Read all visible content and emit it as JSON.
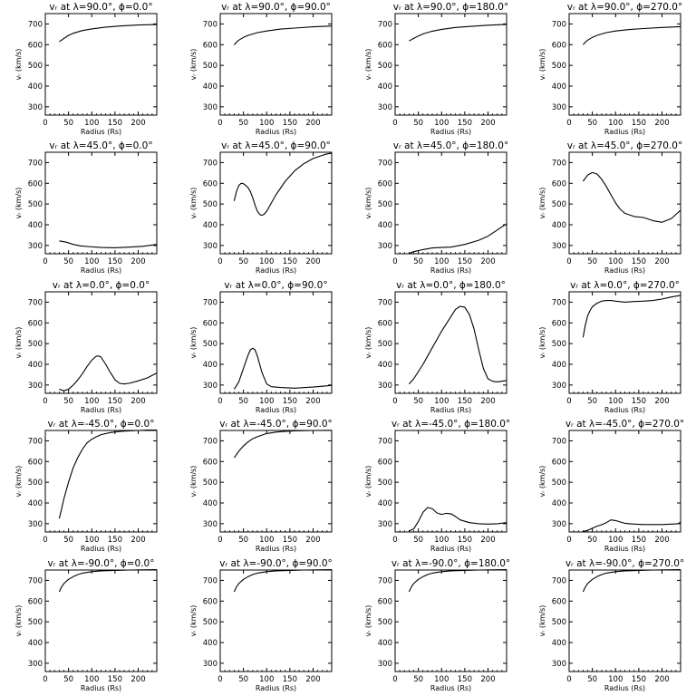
{
  "figure": {
    "ylabel": "vᵣ (km/s)",
    "xlabel": "Radius (Rs)",
    "xticks": [
      0,
      50,
      100,
      150,
      200
    ],
    "yticks": [
      300,
      400,
      500,
      600,
      700
    ],
    "xlim": [
      0,
      240
    ],
    "ylim": [
      260,
      750
    ]
  },
  "chart_data": [
    {
      "type": "line",
      "title": "vᵣ at λ=90.0°, ϕ=0.0°",
      "xlabel": "Radius (Rs)",
      "ylabel": "vᵣ (km/s)",
      "xlim": [
        0,
        240
      ],
      "ylim": [
        260,
        750
      ],
      "x": [
        30,
        40,
        50,
        60,
        80,
        100,
        130,
        160,
        200,
        240
      ],
      "y": [
        615,
        630,
        645,
        655,
        668,
        676,
        685,
        690,
        695,
        697
      ]
    },
    {
      "type": "line",
      "title": "vᵣ at λ=90.0°, ϕ=90.0°",
      "xlabel": "Radius (Rs)",
      "ylabel": "vᵣ (km/s)",
      "xlim": [
        0,
        240
      ],
      "ylim": [
        260,
        750
      ],
      "x": [
        30,
        35,
        40,
        50,
        60,
        80,
        100,
        130,
        160,
        200,
        240
      ],
      "y": [
        598,
        612,
        622,
        635,
        645,
        658,
        666,
        675,
        680,
        686,
        690
      ]
    },
    {
      "type": "line",
      "title": "vᵣ at λ=90.0°, ϕ=180.0°",
      "xlabel": "Radius (Rs)",
      "ylabel": "vᵣ (km/s)",
      "xlim": [
        0,
        240
      ],
      "ylim": [
        260,
        750
      ],
      "x": [
        30,
        40,
        50,
        60,
        80,
        100,
        130,
        160,
        200,
        240
      ],
      "y": [
        618,
        630,
        642,
        652,
        665,
        674,
        683,
        688,
        694,
        698
      ]
    },
    {
      "type": "line",
      "title": "vᵣ at λ=90.0°, ϕ=270.0°",
      "xlabel": "Radius (Rs)",
      "ylabel": "vᵣ (km/s)",
      "xlim": [
        0,
        240
      ],
      "ylim": [
        260,
        750
      ],
      "x": [
        30,
        35,
        40,
        50,
        60,
        80,
        100,
        130,
        160,
        200,
        240
      ],
      "y": [
        600,
        612,
        622,
        635,
        645,
        658,
        666,
        673,
        678,
        683,
        687
      ]
    },
    {
      "type": "line",
      "title": "vᵣ at λ=45.0°, ϕ=0.0°",
      "xlabel": "Radius (Rs)",
      "ylabel": "vᵣ (km/s)",
      "xlim": [
        0,
        240
      ],
      "ylim": [
        260,
        750
      ],
      "x": [
        30,
        45,
        60,
        75,
        90,
        120,
        150,
        180,
        210,
        240
      ],
      "y": [
        322,
        316,
        305,
        298,
        295,
        290,
        289,
        292,
        296,
        305
      ]
    },
    {
      "type": "line",
      "title": "vᵣ at λ=45.0°, ϕ=90.0°",
      "xlabel": "Radius (Rs)",
      "ylabel": "vᵣ (km/s)",
      "xlim": [
        0,
        240
      ],
      "ylim": [
        260,
        750
      ],
      "x": [
        30,
        35,
        40,
        45,
        50,
        55,
        60,
        65,
        70,
        75,
        80,
        85,
        90,
        95,
        100,
        110,
        120,
        140,
        160,
        180,
        200,
        220,
        230,
        240
      ],
      "y": [
        515,
        560,
        590,
        600,
        598,
        590,
        578,
        560,
        530,
        495,
        465,
        450,
        445,
        452,
        465,
        505,
        545,
        610,
        660,
        695,
        720,
        735,
        742,
        745
      ]
    },
    {
      "type": "line",
      "title": "vᵣ at λ=45.0°, ϕ=180.0°",
      "xlabel": "Radius (Rs)",
      "ylabel": "vᵣ (km/s)",
      "xlim": [
        0,
        240
      ],
      "ylim": [
        260,
        750
      ],
      "x": [
        30,
        40,
        60,
        80,
        100,
        120,
        150,
        180,
        200,
        220,
        240
      ],
      "y": [
        262,
        270,
        280,
        288,
        290,
        292,
        305,
        325,
        345,
        375,
        405
      ]
    },
    {
      "type": "line",
      "title": "vᵣ at λ=45.0°, ϕ=270.0°",
      "xlabel": "Radius (Rs)",
      "ylabel": "vᵣ (km/s)",
      "xlim": [
        0,
        240
      ],
      "ylim": [
        260,
        750
      ],
      "x": [
        30,
        40,
        50,
        60,
        70,
        80,
        90,
        100,
        110,
        120,
        140,
        160,
        180,
        200,
        220,
        240
      ],
      "y": [
        610,
        640,
        652,
        645,
        620,
        585,
        545,
        505,
        475,
        455,
        440,
        435,
        420,
        412,
        430,
        470
      ]
    },
    {
      "type": "line",
      "title": "vᵣ at λ=0.0°, ϕ=0.0°",
      "xlabel": "Radius (Rs)",
      "ylabel": "vᵣ (km/s)",
      "xlim": [
        0,
        240
      ],
      "ylim": [
        260,
        750
      ],
      "x": [
        30,
        40,
        50,
        60,
        70,
        80,
        90,
        100,
        110,
        115,
        120,
        130,
        140,
        150,
        160,
        170,
        180,
        200,
        220,
        240
      ],
      "y": [
        280,
        272,
        280,
        300,
        325,
        355,
        390,
        420,
        440,
        440,
        435,
        400,
        360,
        325,
        308,
        305,
        308,
        320,
        335,
        358
      ]
    },
    {
      "type": "line",
      "title": "vᵣ at λ=0.0°, ϕ=90.0°",
      "xlabel": "Radius (Rs)",
      "ylabel": "vᵣ (km/s)",
      "xlim": [
        0,
        240
      ],
      "ylim": [
        260,
        750
      ],
      "x": [
        30,
        40,
        50,
        60,
        65,
        70,
        75,
        80,
        90,
        100,
        110,
        130,
        160,
        200,
        240
      ],
      "y": [
        280,
        315,
        380,
        445,
        470,
        478,
        470,
        440,
        360,
        305,
        292,
        288,
        285,
        290,
        298
      ]
    },
    {
      "type": "line",
      "title": "vᵣ at λ=0.0°, ϕ=180.0°",
      "xlabel": "Radius (Rs)",
      "ylabel": "vᵣ (km/s)",
      "xlim": [
        0,
        240
      ],
      "ylim": [
        260,
        750
      ],
      "x": [
        30,
        40,
        60,
        80,
        100,
        120,
        130,
        140,
        150,
        160,
        170,
        180,
        190,
        200,
        210,
        220,
        240
      ],
      "y": [
        305,
        330,
        400,
        480,
        560,
        630,
        665,
        680,
        675,
        640,
        570,
        470,
        380,
        330,
        318,
        315,
        322
      ]
    },
    {
      "type": "line",
      "title": "vᵣ at λ=0.0°, ϕ=270.0°",
      "xlabel": "Radius (Rs)",
      "ylabel": "vᵣ (km/s)",
      "xlim": [
        0,
        240
      ],
      "ylim": [
        260,
        750
      ],
      "x": [
        30,
        35,
        40,
        45,
        50,
        60,
        70,
        80,
        90,
        100,
        120,
        140,
        160,
        180,
        200,
        220,
        240
      ],
      "y": [
        530,
        590,
        635,
        660,
        678,
        695,
        705,
        708,
        708,
        705,
        700,
        703,
        705,
        708,
        715,
        725,
        733
      ]
    },
    {
      "type": "line",
      "title": "vᵣ at λ=-45.0°, ϕ=0.0°",
      "xlabel": "Radius (Rs)",
      "ylabel": "vᵣ (km/s)",
      "xlim": [
        0,
        240
      ],
      "ylim": [
        260,
        750
      ],
      "x": [
        30,
        35,
        40,
        50,
        60,
        70,
        80,
        90,
        100,
        110,
        120,
        140,
        160,
        180,
        200,
        220,
        240
      ],
      "y": [
        325,
        370,
        420,
        500,
        570,
        620,
        660,
        690,
        708,
        720,
        730,
        740,
        745,
        748,
        750,
        752,
        752
      ]
    },
    {
      "type": "line",
      "title": "vᵣ at λ=-45.0°, ϕ=90.0°",
      "xlabel": "Radius (Rs)",
      "ylabel": "vᵣ (km/s)",
      "xlim": [
        0,
        240
      ],
      "ylim": [
        260,
        750
      ],
      "x": [
        30,
        40,
        50,
        60,
        70,
        80,
        100,
        120,
        140,
        160,
        200,
        240
      ],
      "y": [
        618,
        650,
        675,
        695,
        710,
        720,
        735,
        742,
        746,
        748,
        750,
        751
      ]
    },
    {
      "type": "line",
      "title": "vᵣ at λ=-45.0°, ϕ=180.0°",
      "xlabel": "Radius (Rs)",
      "ylabel": "vᵣ (km/s)",
      "xlim": [
        0,
        240
      ],
      "ylim": [
        260,
        750
      ],
      "x": [
        30,
        40,
        50,
        60,
        70,
        80,
        90,
        100,
        110,
        120,
        130,
        140,
        160,
        180,
        200,
        220,
        240
      ],
      "y": [
        265,
        275,
        310,
        355,
        378,
        372,
        352,
        345,
        350,
        348,
        335,
        318,
        305,
        300,
        298,
        300,
        305
      ]
    },
    {
      "type": "line",
      "title": "vᵣ at λ=-45.0°, ϕ=270.0°",
      "xlabel": "Radius (Rs)",
      "ylabel": "vᵣ (km/s)",
      "xlim": [
        0,
        240
      ],
      "ylim": [
        260,
        750
      ],
      "x": [
        30,
        40,
        50,
        60,
        70,
        80,
        90,
        100,
        110,
        120,
        140,
        160,
        180,
        200,
        220,
        235,
        240
      ],
      "y": [
        262,
        268,
        278,
        288,
        295,
        305,
        318,
        315,
        308,
        302,
        298,
        296,
        296,
        296,
        298,
        300,
        308
      ]
    },
    {
      "type": "line",
      "title": "vᵣ at λ=-90.0°, ϕ=0.0°",
      "xlabel": "Radius (Rs)",
      "ylabel": "vᵣ (km/s)",
      "xlim": [
        0,
        240
      ],
      "ylim": [
        260,
        750
      ],
      "x": [
        30,
        35,
        40,
        50,
        60,
        70,
        80,
        100,
        120,
        150,
        180,
        210,
        240
      ],
      "y": [
        645,
        668,
        685,
        705,
        718,
        728,
        735,
        742,
        746,
        748,
        750,
        751,
        752
      ]
    },
    {
      "type": "line",
      "title": "vᵣ at λ=-90.0°, ϕ=90.0°",
      "xlabel": "Radius (Rs)",
      "ylabel": "vᵣ (km/s)",
      "xlim": [
        0,
        240
      ],
      "ylim": [
        260,
        750
      ],
      "x": [
        30,
        35,
        40,
        50,
        60,
        70,
        80,
        100,
        120,
        150,
        180,
        210,
        240
      ],
      "y": [
        645,
        668,
        685,
        705,
        718,
        728,
        735,
        742,
        746,
        748,
        750,
        751,
        752
      ]
    },
    {
      "type": "line",
      "title": "vᵣ at λ=-90.0°, ϕ=180.0°",
      "xlabel": "Radius (Rs)",
      "ylabel": "vᵣ (km/s)",
      "xlim": [
        0,
        240
      ],
      "ylim": [
        260,
        750
      ],
      "x": [
        30,
        35,
        40,
        50,
        60,
        70,
        80,
        100,
        120,
        150,
        180,
        210,
        240
      ],
      "y": [
        645,
        668,
        685,
        705,
        718,
        728,
        735,
        742,
        746,
        748,
        750,
        751,
        752
      ]
    },
    {
      "type": "line",
      "title": "vᵣ at λ=-90.0°, ϕ=270.0°",
      "xlabel": "Radius (Rs)",
      "ylabel": "vᵣ (km/s)",
      "xlim": [
        0,
        240
      ],
      "ylim": [
        260,
        750
      ],
      "x": [
        30,
        35,
        40,
        50,
        60,
        70,
        80,
        100,
        120,
        150,
        180,
        210,
        240
      ],
      "y": [
        645,
        668,
        685,
        705,
        718,
        728,
        735,
        742,
        746,
        748,
        750,
        751,
        752
      ]
    }
  ]
}
